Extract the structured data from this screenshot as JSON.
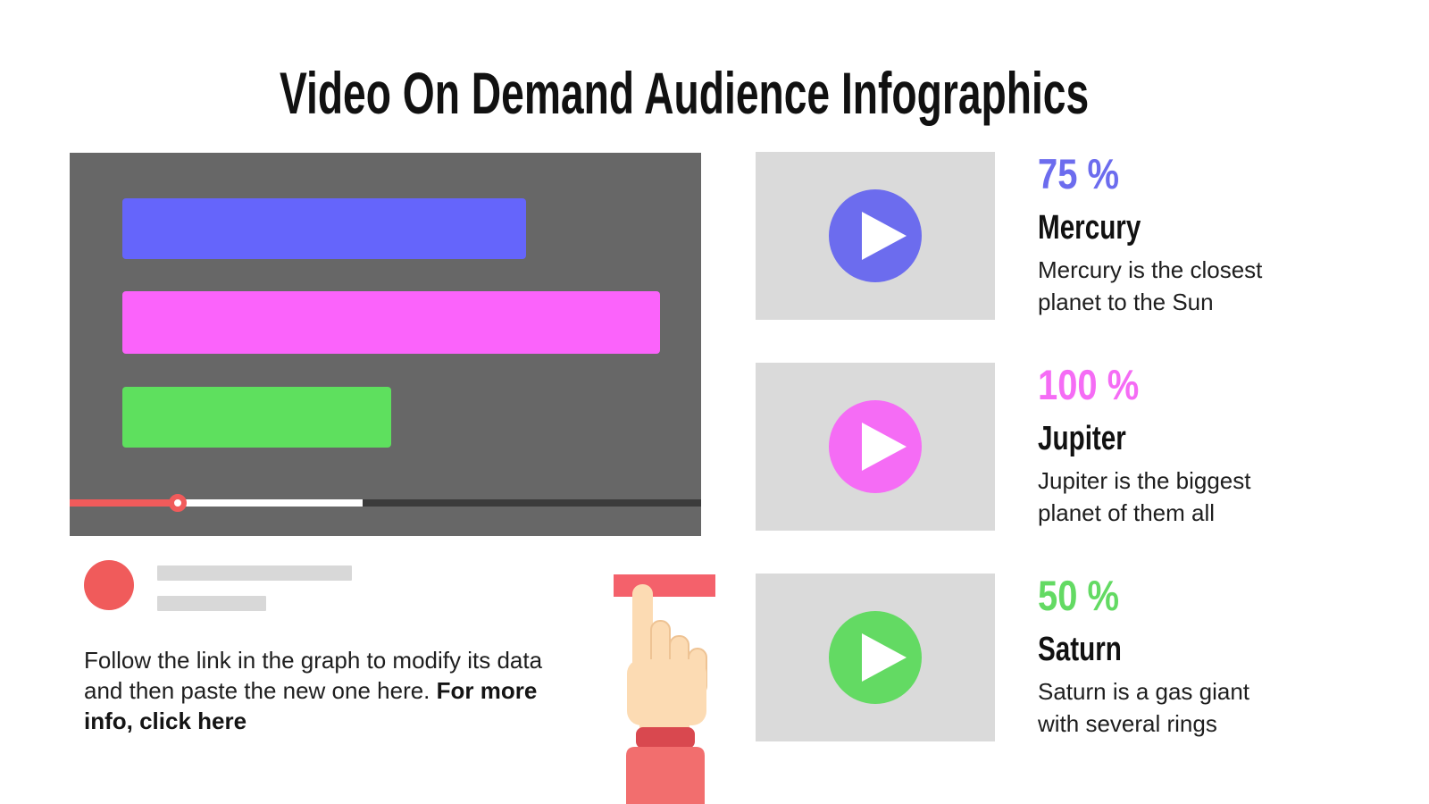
{
  "title": "Video On Demand Audience Infographics",
  "note": {
    "line1": "Follow the link in the graph to modify its data",
    "line2_regular": "and then paste the new one here. ",
    "line2_bold": "For more",
    "line3_bold": "info, click here"
  },
  "stats": [
    {
      "value": "75 %",
      "name": "Mercury",
      "desc_line1": "Mercury is the closest",
      "desc_line2": "planet to the Sun",
      "color": "#6c6cee"
    },
    {
      "value": "100 %",
      "name": "Jupiter",
      "desc_line1": "Jupiter is the biggest",
      "desc_line2": "planet of them all",
      "color": "#f56cf5"
    },
    {
      "value": "50 %",
      "name": "Saturn",
      "desc_line1": "Saturn is a gas giant",
      "desc_line2": "with several rings",
      "color": "#63da63"
    }
  ],
  "chart_data": {
    "type": "bar",
    "orientation": "horizontal",
    "title": "Audience share bars shown inside video-player mockup",
    "categories": [
      "Mercury",
      "Jupiter",
      "Saturn"
    ],
    "values": [
      75,
      100,
      50
    ],
    "unit": "%",
    "xlim": [
      0,
      100
    ],
    "colors": [
      "#6565fb",
      "#fb63fb",
      "#5ee05e"
    ],
    "grid": false,
    "legend": false
  },
  "player": {
    "progress": {
      "played_color": "#f05b5b",
      "buffer_color": "#ffffff",
      "rest_color": "#3b3b3b"
    }
  },
  "palette": {
    "player_background": "#676767",
    "card_background": "#dadada",
    "placeholder_gray": "#d8d8d8",
    "red_accent": "#f05b5b",
    "button_red": "#f4616b",
    "sleeve_red": "#f26e6e",
    "cuff_red": "#d9484f",
    "skin": "#fcdbb3"
  }
}
